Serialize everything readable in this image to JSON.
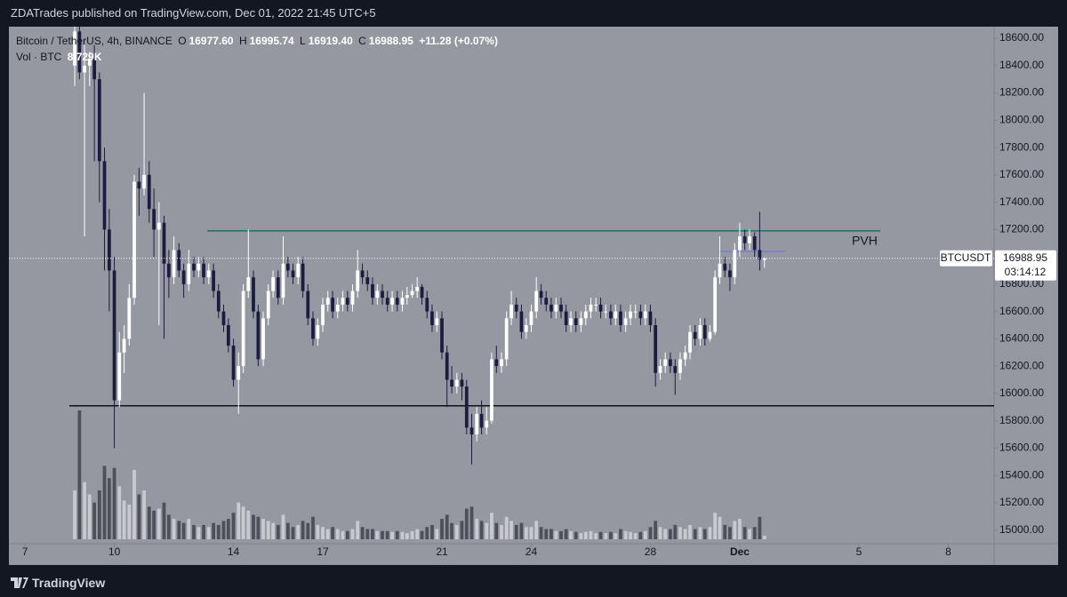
{
  "chart_data": {
    "type": "candlestick",
    "title": "ZDATrades published on TradingView.com, Dec 01, 2022 21:45 UTC+5",
    "footer": "TradingView",
    "legend": {
      "symbol": "Bitcoin / TetherUS, 4h, BINANCE",
      "o_label": "O",
      "o": "16977.60",
      "h_label": "H",
      "h": "16995.74",
      "l_label": "L",
      "l": "16919.40",
      "c_label": "C",
      "c": "16988.95",
      "change": "+11.28 (+0.07%)",
      "volume_label": "Vol · BTC",
      "volume": "8.729K"
    },
    "up_color": "#ffffff",
    "down_color": "#1b1c3f",
    "volume_up_color": "#c9cacf",
    "volume_down_color": "#4d4f59",
    "xlim": [
      6.46,
      39.54
    ],
    "ylim": [
      14900,
      18685
    ],
    "xticks": [
      7,
      10,
      14,
      17,
      21,
      24,
      28,
      {
        "value": 31,
        "label": "Dec"
      },
      {
        "value": 35,
        "label": "5"
      },
      {
        "value": 38,
        "label": "8"
      }
    ],
    "yticks": [
      {
        "value": 18600,
        "label": "18600.00"
      },
      {
        "value": 18400,
        "label": "18400.00"
      },
      {
        "value": 18200,
        "label": "18200.00"
      },
      {
        "value": 18000,
        "label": "18000.00"
      },
      {
        "value": 17800,
        "label": "17800.00"
      },
      {
        "value": 17600,
        "label": "17600.00"
      },
      {
        "value": 17400,
        "label": "17400.00"
      },
      {
        "value": 17200,
        "label": "17200.00"
      },
      {
        "value": 17000,
        "label": "17000.00"
      },
      {
        "value": 16800,
        "label": "16800.00"
      },
      {
        "value": 16600,
        "label": "16600.00"
      },
      {
        "value": 16400,
        "label": "16400.00"
      },
      {
        "value": 16200,
        "label": "16200.00"
      },
      {
        "value": 16000,
        "label": "16000.00"
      },
      {
        "value": 15800,
        "label": "15800.00"
      },
      {
        "value": 15600,
        "label": "15600.00"
      },
      {
        "value": 15400,
        "label": "15400.00"
      },
      {
        "value": 15200,
        "label": "15200.00"
      },
      {
        "value": 15000,
        "label": "15000.00"
      }
    ],
    "last_price": {
      "value": 16988.95,
      "label": "16988.95",
      "symbol": "BTCUSDT",
      "countdown": "03:14:12"
    },
    "levels": [
      {
        "name": "PVH",
        "price": 17190,
        "x": [
          13.12,
          35.72
        ],
        "color": "#1f6e5e"
      },
      {
        "price": 15910,
        "x": [
          8.49,
          39.54
        ],
        "color": "#111111"
      },
      {
        "price": 17040,
        "x": [
          30.28,
          32.52
        ],
        "color": "#7b86c9"
      }
    ],
    "candles": [
      [
        8.67,
        18400,
        18700,
        18250,
        18650,
        120000
      ],
      [
        8.83,
        18650,
        18700,
        18300,
        18350,
        316000
      ],
      [
        9.0,
        18350,
        18550,
        17150,
        18400,
        140000
      ],
      [
        9.17,
        18400,
        18500,
        18250,
        18450,
        110000
      ],
      [
        9.33,
        18450,
        18550,
        17700,
        18300,
        90000
      ],
      [
        9.5,
        18300,
        18350,
        17400,
        17700,
        120000
      ],
      [
        9.67,
        17700,
        17800,
        16900,
        17200,
        180000
      ],
      [
        9.83,
        17200,
        17350,
        16600,
        16900,
        150000
      ],
      [
        10.0,
        16900,
        17000,
        15600,
        15950,
        175000
      ],
      [
        10.17,
        15950,
        16450,
        15900,
        16300,
        130000
      ],
      [
        10.33,
        16300,
        16500,
        16150,
        16400,
        95000
      ],
      [
        10.5,
        16400,
        16800,
        16350,
        16700,
        85000
      ],
      [
        10.67,
        16700,
        17600,
        16650,
        17550,
        170000
      ],
      [
        10.83,
        17550,
        17650,
        17300,
        17500,
        110000
      ],
      [
        11.0,
        17500,
        18200,
        17450,
        17600,
        120000
      ],
      [
        11.17,
        17600,
        17700,
        17250,
        17350,
        80000
      ],
      [
        11.33,
        17350,
        17500,
        17000,
        17200,
        70000
      ],
      [
        11.5,
        17200,
        17400,
        16500,
        17250,
        75000
      ],
      [
        11.67,
        17250,
        17300,
        16400,
        16950,
        90000
      ],
      [
        11.83,
        16950,
        17050,
        16700,
        16850,
        60000
      ],
      [
        12.0,
        16850,
        17150,
        16800,
        17050,
        50000
      ],
      [
        12.17,
        17050,
        17100,
        16850,
        16900,
        45000
      ],
      [
        12.33,
        16900,
        16950,
        16700,
        16800,
        40000
      ],
      [
        12.5,
        16800,
        17050,
        16750,
        16950,
        50000
      ],
      [
        12.67,
        16950,
        17000,
        16850,
        16900,
        35000
      ],
      [
        12.83,
        16900,
        17000,
        16850,
        16950,
        30000
      ],
      [
        13.0,
        16950,
        17000,
        16800,
        16850,
        35000
      ],
      [
        13.17,
        16850,
        16950,
        16800,
        16900,
        30000
      ],
      [
        13.33,
        16900,
        16950,
        16700,
        16750,
        40000
      ],
      [
        13.5,
        16750,
        16800,
        16550,
        16600,
        35000
      ],
      [
        13.67,
        16600,
        16650,
        16450,
        16500,
        45000
      ],
      [
        13.83,
        16500,
        16550,
        16300,
        16350,
        50000
      ],
      [
        14.0,
        16350,
        16400,
        16050,
        16100,
        65000
      ],
      [
        14.17,
        16100,
        16300,
        15850,
        16200,
        90000
      ],
      [
        14.33,
        16200,
        16800,
        16150,
        16750,
        80000
      ],
      [
        14.5,
        16750,
        17200,
        16700,
        16850,
        70000
      ],
      [
        14.67,
        16850,
        16900,
        16550,
        16600,
        60000
      ],
      [
        14.83,
        16600,
        16650,
        16200,
        16250,
        55000
      ],
      [
        15.0,
        16250,
        16600,
        16200,
        16550,
        50000
      ],
      [
        15.17,
        16550,
        16800,
        16500,
        16750,
        45000
      ],
      [
        15.33,
        16750,
        16900,
        16700,
        16850,
        40000
      ],
      [
        15.5,
        16850,
        16900,
        16650,
        16700,
        35000
      ],
      [
        15.67,
        16700,
        17150,
        16650,
        16950,
        60000
      ],
      [
        15.83,
        16950,
        17000,
        16850,
        16900,
        40000
      ],
      [
        16.0,
        16900,
        16950,
        16800,
        16850,
        30000
      ],
      [
        16.17,
        16850,
        17000,
        16800,
        16950,
        35000
      ],
      [
        16.33,
        16950,
        17000,
        16700,
        16750,
        45000
      ],
      [
        16.5,
        16750,
        16800,
        16500,
        16550,
        40000
      ],
      [
        16.67,
        16550,
        16600,
        16350,
        16400,
        55000
      ],
      [
        16.83,
        16400,
        16550,
        16350,
        16500,
        35000
      ],
      [
        17.0,
        16500,
        16700,
        16450,
        16650,
        30000
      ],
      [
        17.17,
        16650,
        16750,
        16600,
        16700,
        25000
      ],
      [
        17.33,
        16700,
        16750,
        16550,
        16600,
        30000
      ],
      [
        17.5,
        16600,
        16700,
        16550,
        16650,
        25000
      ],
      [
        17.67,
        16650,
        16750,
        16600,
        16700,
        20000
      ],
      [
        17.83,
        16700,
        16750,
        16600,
        16650,
        20000
      ],
      [
        18.0,
        16650,
        16800,
        16600,
        16750,
        25000
      ],
      [
        18.17,
        16750,
        17050,
        16700,
        16900,
        45000
      ],
      [
        18.33,
        16900,
        16950,
        16800,
        16850,
        30000
      ],
      [
        18.5,
        16850,
        16900,
        16750,
        16800,
        25000
      ],
      [
        18.67,
        16800,
        16850,
        16650,
        16700,
        25000
      ],
      [
        18.83,
        16700,
        16800,
        16650,
        16750,
        20000
      ],
      [
        19.0,
        16750,
        16800,
        16650,
        16700,
        20000
      ],
      [
        19.17,
        16700,
        16750,
        16600,
        16650,
        20000
      ],
      [
        19.33,
        16650,
        16750,
        16600,
        16700,
        18000
      ],
      [
        19.5,
        16700,
        16750,
        16600,
        16650,
        20000
      ],
      [
        19.67,
        16650,
        16750,
        16600,
        16700,
        18000
      ],
      [
        19.83,
        16700,
        16780,
        16650,
        16720,
        15000
      ],
      [
        20.0,
        16720,
        16800,
        16700,
        16750,
        20000
      ],
      [
        20.17,
        16750,
        16850,
        16700,
        16780,
        25000
      ],
      [
        20.33,
        16780,
        16800,
        16650,
        16700,
        20000
      ],
      [
        20.5,
        16700,
        16750,
        16550,
        16600,
        30000
      ],
      [
        20.67,
        16600,
        16650,
        16450,
        16500,
        35000
      ],
      [
        20.83,
        16500,
        16600,
        16450,
        16550,
        25000
      ],
      [
        21.0,
        16550,
        16600,
        16250,
        16300,
        50000
      ],
      [
        21.17,
        16300,
        16350,
        15900,
        16100,
        60000
      ],
      [
        21.33,
        16100,
        16200,
        16000,
        16050,
        40000
      ],
      [
        21.5,
        16050,
        16150,
        16000,
        16100,
        35000
      ],
      [
        21.67,
        16100,
        16150,
        15950,
        16050,
        45000
      ],
      [
        21.83,
        16050,
        16100,
        15700,
        15750,
        75000
      ],
      [
        22.0,
        15750,
        15850,
        15480,
        15700,
        80000
      ],
      [
        22.17,
        15700,
        15900,
        15650,
        15850,
        50000
      ],
      [
        22.33,
        15850,
        15950,
        15700,
        15750,
        45000
      ],
      [
        22.5,
        15750,
        15900,
        15700,
        15800,
        40000
      ],
      [
        22.67,
        15800,
        16300,
        15780,
        16250,
        65000
      ],
      [
        22.83,
        16250,
        16350,
        16150,
        16200,
        40000
      ],
      [
        23.0,
        16200,
        16300,
        16150,
        16250,
        35000
      ],
      [
        23.17,
        16250,
        16600,
        16200,
        16550,
        55000
      ],
      [
        23.33,
        16550,
        16750,
        16500,
        16650,
        45000
      ],
      [
        23.5,
        16650,
        16700,
        16550,
        16600,
        35000
      ],
      [
        23.67,
        16600,
        16650,
        16400,
        16450,
        40000
      ],
      [
        23.83,
        16450,
        16550,
        16400,
        16500,
        30000
      ],
      [
        24.0,
        16500,
        16650,
        16450,
        16600,
        30000
      ],
      [
        24.17,
        16600,
        16850,
        16550,
        16750,
        45000
      ],
      [
        24.33,
        16750,
        16800,
        16650,
        16700,
        30000
      ],
      [
        24.5,
        16700,
        16750,
        16600,
        16650,
        25000
      ],
      [
        24.67,
        16650,
        16700,
        16550,
        16600,
        25000
      ],
      [
        24.83,
        16600,
        16700,
        16550,
        16650,
        20000
      ],
      [
        25.0,
        16650,
        16700,
        16550,
        16600,
        20000
      ],
      [
        25.17,
        16600,
        16650,
        16450,
        16500,
        25000
      ],
      [
        25.33,
        16500,
        16600,
        16450,
        16550,
        20000
      ],
      [
        25.5,
        16550,
        16600,
        16450,
        16500,
        18000
      ],
      [
        25.67,
        16500,
        16600,
        16450,
        16550,
        15000
      ],
      [
        25.83,
        16550,
        16650,
        16500,
        16600,
        18000
      ],
      [
        26.0,
        16600,
        16700,
        16550,
        16650,
        20000
      ],
      [
        26.17,
        16650,
        16700,
        16600,
        16650,
        15000
      ],
      [
        26.33,
        16650,
        16700,
        16550,
        16600,
        18000
      ],
      [
        26.5,
        16600,
        16650,
        16550,
        16600,
        15000
      ],
      [
        26.67,
        16600,
        16650,
        16500,
        16550,
        18000
      ],
      [
        26.83,
        16550,
        16650,
        16500,
        16600,
        15000
      ],
      [
        27.0,
        16600,
        16650,
        16450,
        16500,
        25000
      ],
      [
        27.17,
        16500,
        16600,
        16450,
        16550,
        20000
      ],
      [
        27.33,
        16550,
        16650,
        16500,
        16600,
        18000
      ],
      [
        27.5,
        16600,
        16650,
        16550,
        16600,
        15000
      ],
      [
        27.67,
        16600,
        16650,
        16500,
        16550,
        18000
      ],
      [
        27.83,
        16550,
        16650,
        16500,
        16600,
        20000
      ],
      [
        28.0,
        16600,
        16650,
        16450,
        16500,
        30000
      ],
      [
        28.17,
        16500,
        16550,
        16050,
        16150,
        45000
      ],
      [
        28.33,
        16150,
        16250,
        16100,
        16200,
        30000
      ],
      [
        28.5,
        16200,
        16300,
        16150,
        16250,
        25000
      ],
      [
        28.67,
        16250,
        16300,
        16150,
        16200,
        25000
      ],
      [
        28.83,
        16200,
        16250,
        15990,
        16150,
        35000
      ],
      [
        29.0,
        16150,
        16300,
        16100,
        16250,
        30000
      ],
      [
        29.17,
        16250,
        16350,
        16200,
        16300,
        25000
      ],
      [
        29.33,
        16300,
        16500,
        16250,
        16450,
        35000
      ],
      [
        29.5,
        16450,
        16500,
        16350,
        16400,
        25000
      ],
      [
        29.67,
        16400,
        16550,
        16350,
        16500,
        30000
      ],
      [
        29.83,
        16500,
        16550,
        16350,
        16400,
        25000
      ],
      [
        30.0,
        16400,
        16500,
        16380,
        16450,
        30000
      ],
      [
        30.17,
        16450,
        16900,
        16430,
        16850,
        65000
      ],
      [
        30.33,
        16850,
        17150,
        16800,
        16950,
        55000
      ],
      [
        30.5,
        16950,
        17000,
        16850,
        16900,
        35000
      ],
      [
        30.67,
        16900,
        16950,
        16750,
        16850,
        30000
      ],
      [
        30.83,
        16850,
        17100,
        16800,
        17050,
        45000
      ],
      [
        31.0,
        17050,
        17250,
        17000,
        17150,
        50000
      ],
      [
        31.17,
        17150,
        17200,
        17050,
        17100,
        30000
      ],
      [
        31.33,
        17100,
        17200,
        17050,
        17150,
        25000
      ],
      [
        31.5,
        17150,
        17180,
        17000,
        17050,
        30000
      ],
      [
        31.67,
        17050,
        17330,
        16900,
        16980,
        55000
      ],
      [
        31.83,
        16977.6,
        16995.74,
        16919.4,
        16988.95,
        8729
      ]
    ]
  }
}
